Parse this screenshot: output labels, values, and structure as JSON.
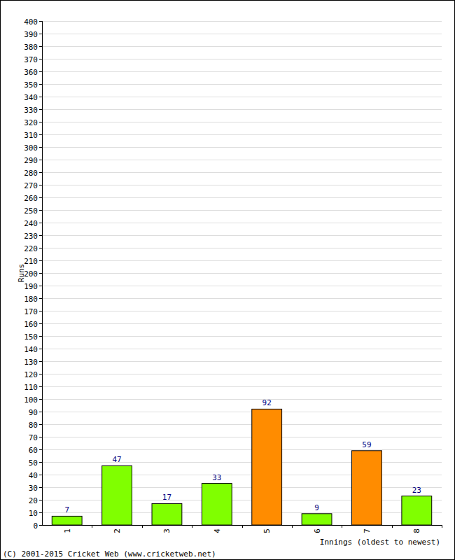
{
  "chart_data": {
    "type": "bar",
    "categories": [
      "1",
      "2",
      "3",
      "4",
      "5",
      "6",
      "7",
      "8"
    ],
    "values": [
      7,
      47,
      17,
      33,
      92,
      9,
      59,
      23
    ],
    "colors": [
      "#80ff00",
      "#80ff00",
      "#80ff00",
      "#80ff00",
      "#ff8c00",
      "#80ff00",
      "#ff8c00",
      "#80ff00"
    ],
    "x_label": "Innings (oldest to newest)",
    "y_label": "Runs",
    "annotations": [
      "(C) 2001-2015 Cricket Web (www.cricketweb.net)"
    ],
    "ylim": [
      0,
      400
    ],
    "yticks": [
      0,
      10,
      20,
      30,
      40,
      50,
      60,
      70,
      80,
      90,
      100,
      110,
      120,
      130,
      140,
      150,
      160,
      170,
      180,
      190,
      200,
      210,
      220,
      230,
      240,
      250,
      260,
      270,
      280,
      290,
      300,
      310,
      320,
      330,
      340,
      350,
      360,
      370,
      380,
      390,
      400
    ],
    "grid": true,
    "data_labels": true
  }
}
